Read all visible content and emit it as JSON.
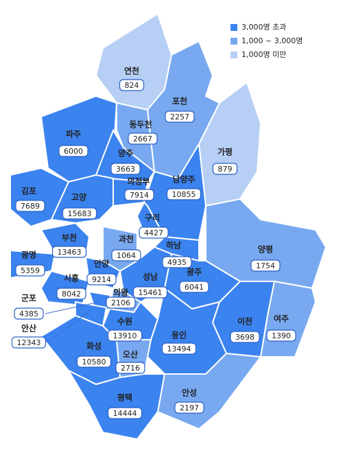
{
  "legend": [
    {
      "label": "3,000명 초과",
      "color": "#3b83ef"
    },
    {
      "label": "1,000 ~ 3,000명",
      "color": "#78a9f0"
    },
    {
      "label": "1,000명 미만",
      "color": "#b7cff4"
    }
  ],
  "regions": [
    {
      "name": "연천",
      "value": 824,
      "color": "#b7cff4"
    },
    {
      "name": "포천",
      "value": 2257,
      "color": "#78a9f0"
    },
    {
      "name": "동두천",
      "value": 2667,
      "color": "#78a9f0"
    },
    {
      "name": "파주",
      "value": 6000,
      "color": "#3b83ef"
    },
    {
      "name": "가평",
      "value": 879,
      "color": "#b7cff4"
    },
    {
      "name": "양주",
      "value": 3663,
      "color": "#3b83ef"
    },
    {
      "name": "의정부",
      "value": 7914,
      "color": "#3b83ef"
    },
    {
      "name": "남양주",
      "value": 10855,
      "color": "#3b83ef"
    },
    {
      "name": "김포",
      "value": 7689,
      "color": "#3b83ef"
    },
    {
      "name": "고양",
      "value": 15683,
      "color": "#3b83ef"
    },
    {
      "name": "구리",
      "value": 4427,
      "color": "#3b83ef"
    },
    {
      "name": "부천",
      "value": 13463,
      "color": "#3b83ef"
    },
    {
      "name": "과천",
      "value": 1064,
      "color": "#78a9f0"
    },
    {
      "name": "하남",
      "value": 4935,
      "color": "#3b83ef"
    },
    {
      "name": "양평",
      "value": 1754,
      "color": "#78a9f0"
    },
    {
      "name": "광명",
      "value": 5359,
      "color": "#3b83ef"
    },
    {
      "name": "안양",
      "value": 9214,
      "color": "#3b83ef"
    },
    {
      "name": "시흥",
      "value": 8042,
      "color": "#3b83ef"
    },
    {
      "name": "성남",
      "value": 15461,
      "color": "#3b83ef"
    },
    {
      "name": "광주",
      "value": 6041,
      "color": "#3b83ef"
    },
    {
      "name": "의왕",
      "value": 2106,
      "color": "#78a9f0"
    },
    {
      "name": "군포",
      "value": 4385,
      "color": "#3b83ef"
    },
    {
      "name": "이천",
      "value": 3698,
      "color": "#3b83ef"
    },
    {
      "name": "여주",
      "value": 1390,
      "color": "#78a9f0"
    },
    {
      "name": "안산",
      "value": 12343,
      "color": "#3b83ef"
    },
    {
      "name": "수원",
      "value": 13910,
      "color": "#3b83ef"
    },
    {
      "name": "용인",
      "value": 13494,
      "color": "#3b83ef"
    },
    {
      "name": "화성",
      "value": 10580,
      "color": "#3b83ef"
    },
    {
      "name": "오산",
      "value": 2716,
      "color": "#78a9f0"
    },
    {
      "name": "평택",
      "value": 14444,
      "color": "#3b83ef"
    },
    {
      "name": "안성",
      "value": 2197,
      "color": "#78a9f0"
    }
  ]
}
